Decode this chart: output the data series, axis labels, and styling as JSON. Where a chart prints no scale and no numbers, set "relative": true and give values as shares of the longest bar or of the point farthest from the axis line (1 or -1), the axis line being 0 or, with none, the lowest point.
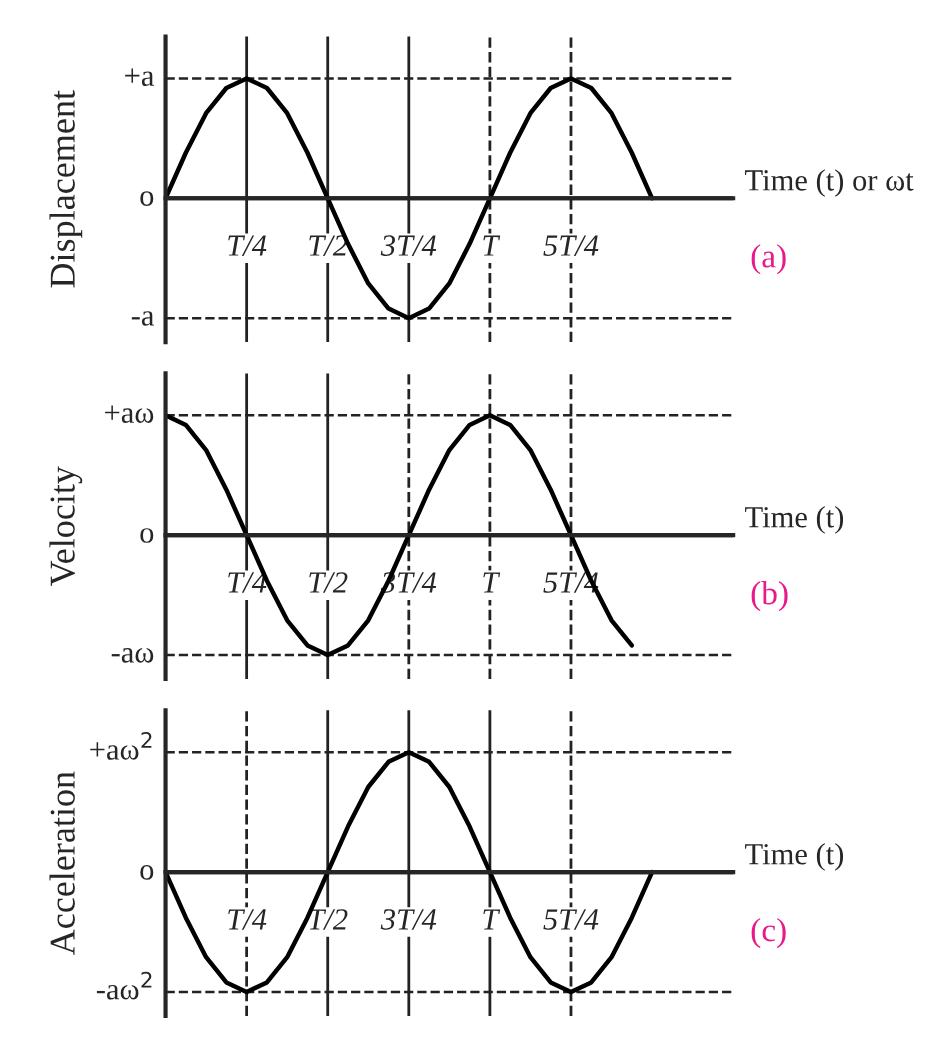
{
  "chart_data": [
    {
      "type": "line",
      "relative": true,
      "xlabel": "Time (t) or ωt",
      "ylabel": "Displacement",
      "annotations": [
        "(a)"
      ],
      "categories": [
        null,
        null,
        null,
        null,
        "T/4",
        null,
        null,
        null,
        "T/2",
        null,
        null,
        null,
        "3T/4",
        null,
        null,
        null,
        "T",
        null,
        null,
        null,
        "5T/4",
        null,
        null,
        null,
        null
      ],
      "series": [
        {
          "color": "#000000",
          "values": [
            0,
            0.38,
            0.71,
            0.92,
            1,
            0.92,
            0.71,
            0.38,
            0,
            -0.38,
            -0.71,
            -0.92,
            -1,
            -0.92,
            -0.71,
            -0.38,
            0,
            0.38,
            0.71,
            0.92,
            1,
            0.92,
            0.71,
            0.38,
            0
          ]
        }
      ],
      "ref_lines": [
        {
          "axis": "y",
          "value": 1,
          "label": "+a",
          "line_style": "dashed"
        },
        {
          "axis": "y",
          "value": 0,
          "label": "o",
          "line_style": "solid"
        },
        {
          "axis": "y",
          "value": -1,
          "label": "-a",
          "line_style": "dashed"
        },
        {
          "axis": "x",
          "value": "T/4",
          "line_style": "solid"
        },
        {
          "axis": "x",
          "value": "T/2",
          "line_style": "solid"
        },
        {
          "axis": "x",
          "value": "3T/4",
          "line_style": "solid"
        },
        {
          "axis": "x",
          "value": "T",
          "line_style": "dashed"
        },
        {
          "axis": "x",
          "value": "5T/4",
          "line_style": "dashed"
        }
      ],
      "marker": "none",
      "line_style": "solid"
    },
    {
      "type": "line",
      "relative": true,
      "xlabel": "Time (t)",
      "ylabel": "Velocity",
      "annotations": [
        "(b)"
      ],
      "categories": [
        null,
        null,
        null,
        null,
        "T/4",
        null,
        null,
        null,
        "T/2",
        null,
        null,
        null,
        "3T/4",
        null,
        null,
        null,
        "T",
        null,
        null,
        null,
        "5T/4",
        null,
        null,
        null
      ],
      "series": [
        {
          "color": "#000000",
          "values": [
            1,
            0.92,
            0.71,
            0.38,
            0,
            -0.38,
            -0.71,
            -0.92,
            -1,
            -0.92,
            -0.71,
            -0.38,
            0,
            0.38,
            0.71,
            0.92,
            1,
            0.92,
            0.71,
            0.38,
            0,
            -0.38,
            -0.71,
            -0.92
          ]
        }
      ],
      "ref_lines": [
        {
          "axis": "y",
          "value": 1,
          "label": "+aω",
          "line_style": "dashed"
        },
        {
          "axis": "y",
          "value": 0,
          "label": "o",
          "line_style": "solid"
        },
        {
          "axis": "y",
          "value": -1,
          "label": "-aω",
          "line_style": "dashed"
        },
        {
          "axis": "x",
          "value": "T/4",
          "line_style": "solid"
        },
        {
          "axis": "x",
          "value": "T/2",
          "line_style": "solid"
        },
        {
          "axis": "x",
          "value": "3T/4",
          "line_style": "dashed"
        },
        {
          "axis": "x",
          "value": "T",
          "line_style": "dashed"
        },
        {
          "axis": "x",
          "value": "5T/4",
          "line_style": "dashed"
        }
      ],
      "marker": "none",
      "line_style": "solid"
    },
    {
      "type": "line",
      "relative": true,
      "xlabel": "Time (t)",
      "ylabel": "Acceleration",
      "annotations": [
        "(c)"
      ],
      "categories": [
        null,
        null,
        null,
        null,
        "T/4",
        null,
        null,
        null,
        "T/2",
        null,
        null,
        null,
        "3T/4",
        null,
        null,
        null,
        "T",
        null,
        null,
        null,
        "5T/4",
        null,
        null,
        null,
        null
      ],
      "series": [
        {
          "color": "#000000",
          "values": [
            0,
            -0.38,
            -0.71,
            -0.92,
            -1,
            -0.92,
            -0.71,
            -0.38,
            0,
            0.38,
            0.71,
            0.92,
            1,
            0.92,
            0.71,
            0.38,
            0,
            -0.38,
            -0.71,
            -0.92,
            -1,
            -0.92,
            -0.71,
            -0.38,
            0
          ]
        }
      ],
      "ref_lines": [
        {
          "axis": "y",
          "value": 1,
          "label": "+aω$^{2}$",
          "line_style": "dashed"
        },
        {
          "axis": "y",
          "value": 0,
          "label": "o",
          "line_style": "solid"
        },
        {
          "axis": "y",
          "value": -1,
          "label": "-aω$^{2}$",
          "line_style": "dashed"
        },
        {
          "axis": "x",
          "value": "T/4",
          "line_style": "dashed"
        },
        {
          "axis": "x",
          "value": "T/2",
          "line_style": "solid"
        },
        {
          "axis": "x",
          "value": "3T/4",
          "line_style": "solid"
        },
        {
          "axis": "x",
          "value": "T",
          "line_style": "solid"
        },
        {
          "axis": "x",
          "value": "5T/4",
          "line_style": "dashed"
        }
      ],
      "marker": "none",
      "line_style": "solid"
    }
  ]
}
